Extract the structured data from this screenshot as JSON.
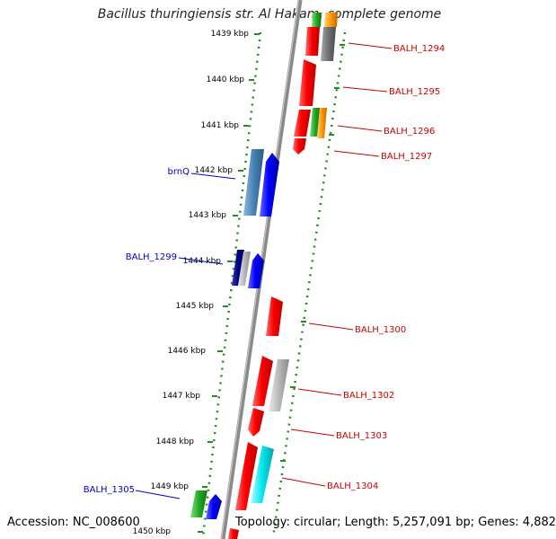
{
  "header": {
    "title": "Bacillus thuringiensis str. Al Hakam, complete genome"
  },
  "footer": {
    "accession": "Accession: NC_008600",
    "summary": "Topology: circular; Length: 5,257,091 bp; Genes: 4,882"
  },
  "ticks": [
    {
      "label": "1439 kbp"
    },
    {
      "label": "1440 kbp"
    },
    {
      "label": "1441 kbp"
    },
    {
      "label": "1442 kbp"
    },
    {
      "label": "1443 kbp"
    },
    {
      "label": "1444 kbp"
    },
    {
      "label": "1445 kbp"
    },
    {
      "label": "1446 kbp"
    },
    {
      "label": "1447 kbp"
    },
    {
      "label": "1448 kbp"
    },
    {
      "label": "1449 kbp"
    },
    {
      "label": "1450 kbp"
    }
  ],
  "gene_labels": {
    "right": [
      "BALH_1294",
      "BALH_1295",
      "BALH_1296",
      "BALH_1297",
      "BALH_1300",
      "BALH_1302",
      "BALH_1303",
      "BALH_1304"
    ],
    "left": [
      "brnQ",
      "BALH_1299",
      "BALH_1305"
    ]
  },
  "colors": {
    "backbone": "#888888",
    "ticks": "#228b22",
    "label_right": "#cc0000",
    "label_left": "#0000cc",
    "gene_red": "#ff0000",
    "gene_blue": "#0000ff",
    "gene_steel": "#4682b4",
    "gene_navy": "#000080",
    "gene_gray": "#b0b0b0",
    "gene_darkgray": "#707070",
    "gene_green": "#22aa22",
    "gene_orange": "#ff9900",
    "gene_cyan": "#00e5ee"
  }
}
